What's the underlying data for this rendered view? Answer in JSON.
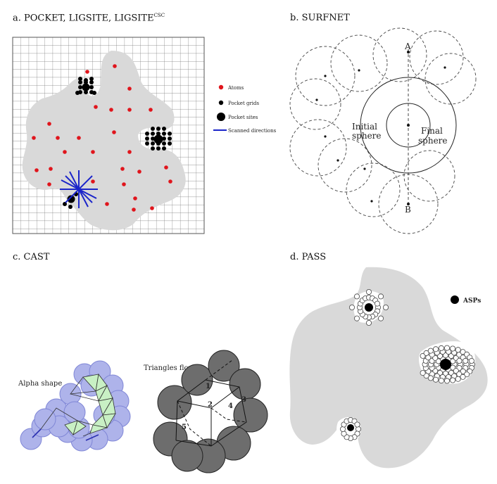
{
  "panels": {
    "a": {
      "title_main": "a. POCKET, LIGSITE, LIGSITE",
      "title_sup": "CSC",
      "legend": {
        "atoms": "Atoms",
        "pocket_grids": "Pocket grids",
        "pocket_sites": "Pocket sites",
        "scanned_directions": "Scanned directions"
      },
      "colors": {
        "atoms": "#e0151c",
        "scan": "#1b25c9",
        "protein": "#d9d9d9"
      }
    },
    "b": {
      "title": "b. SURFNET",
      "point_a": "A",
      "point_b": "B",
      "initial_sphere": [
        "Initial",
        "sphere"
      ],
      "final_sphere": [
        "Final",
        "sphere"
      ]
    },
    "c": {
      "title": "c. CAST",
      "alpha_shape": "Alpha shape",
      "triangles_flow": "Triangles flow",
      "flow_numbers": [
        "1",
        "2",
        "3",
        "4",
        "5"
      ],
      "colors": {
        "alpha_fill": "#aeb3ea",
        "triangle_fill": "#c8f0c4",
        "flow_fill": "#6d6d6d"
      }
    },
    "d": {
      "title": "d. PASS",
      "asps_label": "ASPs"
    }
  }
}
